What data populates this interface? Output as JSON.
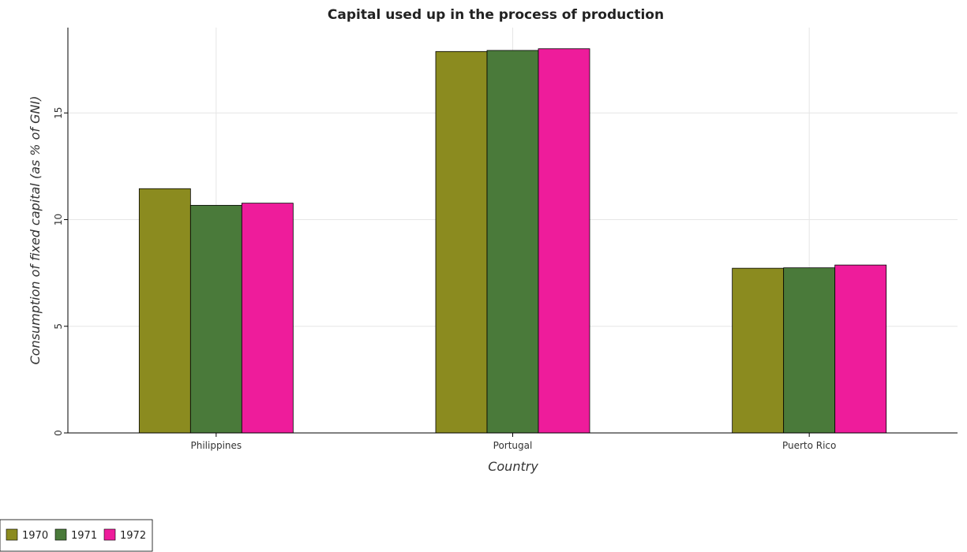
{
  "chart_data": {
    "type": "bar",
    "title": "Capital used up in the process of production",
    "xlabel": "Country",
    "ylabel": "Consumption of fixed capital (as % of GNI)",
    "categories": [
      "Philippines",
      "Portugal",
      "Puerto Rico"
    ],
    "series": [
      {
        "name": "1970",
        "color": "#8b8b1f",
        "values": [
          11.45,
          17.88,
          7.72
        ]
      },
      {
        "name": "1971",
        "color": "#4a7a3a",
        "values": [
          10.67,
          17.93,
          7.74
        ]
      },
      {
        "name": "1972",
        "color": "#ee1c9b",
        "values": [
          10.77,
          18.01,
          7.87
        ]
      }
    ],
    "ylim": [
      0,
      19
    ],
    "yticks": [
      0,
      5,
      10,
      15
    ],
    "ytick_labels": [
      "0",
      "5",
      "10",
      "15"
    ],
    "grid": true,
    "legend_position": "bottom-left"
  }
}
